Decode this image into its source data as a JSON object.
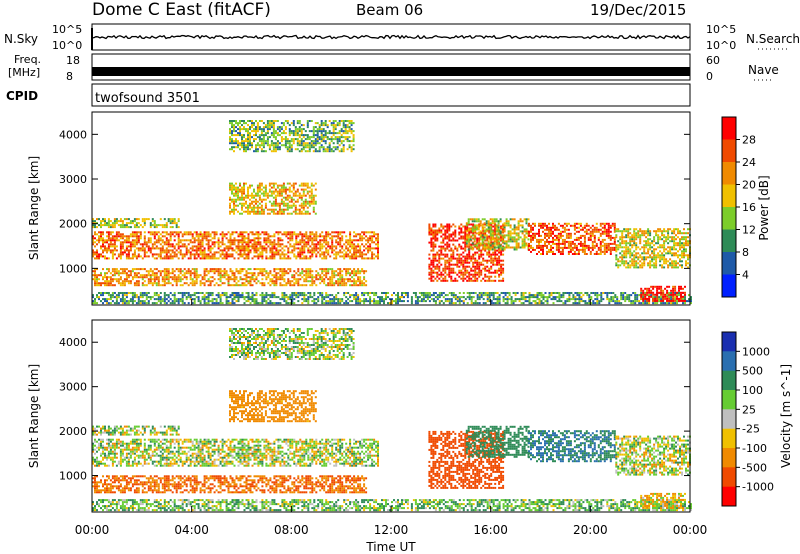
{
  "header": {
    "station": "Dome C East (fitACF)",
    "beam": "Beam 06",
    "date": "19/Dec/2015"
  },
  "strips": {
    "nsky_label": "N.Sky",
    "nsearch_label": "N.Search",
    "nsky_ticks": [
      "10^5",
      "10^0"
    ],
    "freq_label_1": "Freq.",
    "freq_label_2": "[MHz]",
    "freq_ticks": [
      "18",
      "8"
    ],
    "nave_label": "Nave",
    "nave_ticks": [
      "60",
      "0"
    ],
    "cpid_label": "CPID",
    "cpid_value": "twofsound 3501"
  },
  "panels": {
    "power": {
      "ylabel": "Slant Range [km]",
      "colorbar_label": "Power [dB]",
      "colorbar_ticks": [
        "28",
        "24",
        "20",
        "16",
        "12",
        "8",
        "4"
      ],
      "colors": [
        "#ff0000",
        "#f04a00",
        "#f08a00",
        "#f0c000",
        "#7ccd2a",
        "#2e8b57",
        "#1e5aa8",
        "#0020ff"
      ]
    },
    "velocity": {
      "ylabel": "Slant Range [km]",
      "colorbar_label": "Velocity [m s^-1]",
      "colorbar_ticks": [
        "1000",
        "500",
        "100",
        "25",
        "-25",
        "-100",
        "-500",
        "-1000"
      ],
      "colors": [
        "#1a2fb0",
        "#2a6fb0",
        "#2e8b57",
        "#66cc33",
        "#bfbfbf",
        "#f0c000",
        "#f08a00",
        "#f04a00",
        "#ff0000"
      ]
    }
  },
  "xaxis": {
    "label": "Time UT",
    "ticks": [
      "00:00",
      "04:00",
      "08:00",
      "12:00",
      "16:00",
      "20:00",
      "00:00"
    ]
  },
  "chart_data": {
    "type": "heatmap",
    "x_range_hours": [
      0,
      24
    ],
    "y_range_km": [
      180,
      4500
    ],
    "y_ticks": [
      1000,
      2000,
      3000,
      4000
    ],
    "x_ticks_hours": [
      0,
      4,
      8,
      12,
      16,
      20,
      24
    ],
    "power_db_range": [
      0,
      30
    ],
    "velocity_range": [
      -1000,
      1000
    ],
    "regions": [
      {
        "t0": 0.0,
        "t1": 11.5,
        "r0": 1200,
        "r1": 1800,
        "power": 22,
        "velocity": 0
      },
      {
        "t0": 0.0,
        "t1": 11.0,
        "r0": 600,
        "r1": 1000,
        "power": 20,
        "velocity": -300
      },
      {
        "t0": 0.0,
        "t1": 3.5,
        "r0": 1900,
        "r1": 2100,
        "power": 14,
        "velocity": 0
      },
      {
        "t0": 5.5,
        "t1": 9.0,
        "r0": 2200,
        "r1": 2900,
        "power": 18,
        "velocity": -150
      },
      {
        "t0": 5.5,
        "t1": 10.5,
        "r0": 3600,
        "r1": 4300,
        "power": 12,
        "velocity": 20
      },
      {
        "t0": 0.0,
        "t1": 24.0,
        "r0": 200,
        "r1": 450,
        "power": 10,
        "velocity": 40
      },
      {
        "t0": 13.5,
        "t1": 16.5,
        "r0": 700,
        "r1": 2000,
        "power": 26,
        "velocity": -600
      },
      {
        "t0": 15.0,
        "t1": 17.5,
        "r0": 1400,
        "r1": 2100,
        "power": 16,
        "velocity": 200
      },
      {
        "t0": 17.5,
        "t1": 21.0,
        "r0": 1300,
        "r1": 2000,
        "power": 24,
        "velocity": 300
      },
      {
        "t0": 21.0,
        "t1": 24.0,
        "r0": 1000,
        "r1": 1900,
        "power": 16,
        "velocity": 0
      },
      {
        "t0": 22.0,
        "t1": 23.8,
        "r0": 250,
        "r1": 600,
        "power": 28,
        "velocity": -50
      }
    ]
  }
}
